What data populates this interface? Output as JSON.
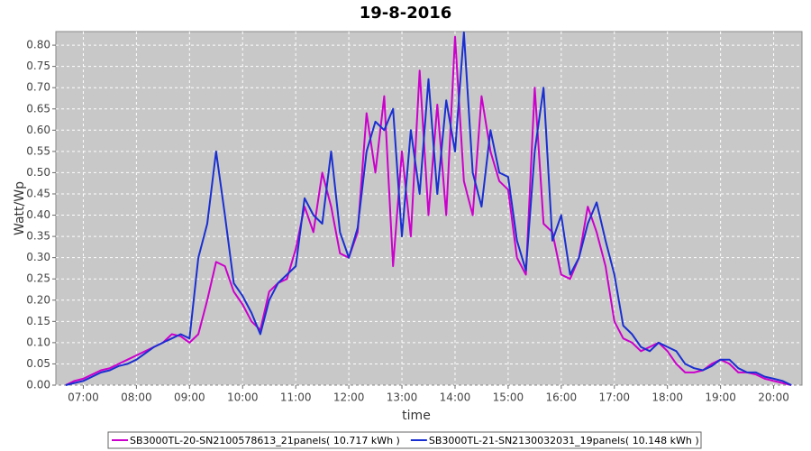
{
  "chart_data": {
    "type": "line",
    "title": "19-8-2016",
    "x_label": "time",
    "y_label": "Watt/Wp",
    "x": [
      400,
      410,
      420,
      430,
      440,
      450,
      460,
      470,
      480,
      490,
      500,
      510,
      520,
      530,
      540,
      550,
      560,
      570,
      580,
      590,
      600,
      610,
      620,
      630,
      640,
      650,
      660,
      670,
      680,
      690,
      700,
      710,
      720,
      730,
      740,
      750,
      760,
      770,
      780,
      790,
      800,
      810,
      820,
      830,
      840,
      850,
      860,
      870,
      880,
      890,
      900,
      910,
      920,
      930,
      940,
      950,
      960,
      970,
      980,
      990,
      1000,
      1010,
      1020,
      1030,
      1040,
      1050,
      1060,
      1070,
      1080,
      1090,
      1100,
      1110,
      1120,
      1130,
      1140,
      1150,
      1160,
      1170,
      1180,
      1190,
      1200,
      1210,
      1220
    ],
    "series": [
      {
        "name": "SB3000TL-20-SN2100578613_21panels( 10.717 kWh )",
        "color": "#cc00cc",
        "values": [
          0,
          0.01,
          0.015,
          0.025,
          0.035,
          0.04,
          0.05,
          0.06,
          0.07,
          0.08,
          0.09,
          0.1,
          0.12,
          0.115,
          0.1,
          0.12,
          0.2,
          0.29,
          0.28,
          0.22,
          0.19,
          0.15,
          0.13,
          0.22,
          0.24,
          0.25,
          0.32,
          0.42,
          0.36,
          0.5,
          0.42,
          0.31,
          0.3,
          0.36,
          0.64,
          0.5,
          0.68,
          0.28,
          0.55,
          0.35,
          0.74,
          0.4,
          0.66,
          0.4,
          0.82,
          0.48,
          0.4,
          0.68,
          0.55,
          0.48,
          0.46,
          0.3,
          0.26,
          0.7,
          0.38,
          0.36,
          0.26,
          0.25,
          0.3,
          0.42,
          0.36,
          0.28,
          0.15,
          0.11,
          0.1,
          0.08,
          0.09,
          0.1,
          0.08,
          0.05,
          0.03,
          0.03,
          0.035,
          0.05,
          0.06,
          0.05,
          0.03,
          0.03,
          0.025,
          0.015,
          0.01,
          0.005,
          0
        ]
      },
      {
        "name": "SB3000TL-21-SN2130032031_19panels( 10.148 kWh )",
        "color": "#1a2fd1",
        "values": [
          0,
          0.005,
          0.01,
          0.02,
          0.03,
          0.035,
          0.045,
          0.05,
          0.06,
          0.075,
          0.09,
          0.1,
          0.11,
          0.12,
          0.11,
          0.3,
          0.38,
          0.55,
          0.4,
          0.24,
          0.21,
          0.17,
          0.12,
          0.2,
          0.24,
          0.26,
          0.28,
          0.44,
          0.4,
          0.38,
          0.55,
          0.36,
          0.3,
          0.37,
          0.55,
          0.62,
          0.6,
          0.65,
          0.35,
          0.6,
          0.45,
          0.72,
          0.45,
          0.67,
          0.55,
          0.83,
          0.5,
          0.42,
          0.6,
          0.5,
          0.49,
          0.34,
          0.27,
          0.55,
          0.7,
          0.34,
          0.4,
          0.26,
          0.3,
          0.38,
          0.43,
          0.34,
          0.26,
          0.14,
          0.12,
          0.09,
          0.08,
          0.1,
          0.09,
          0.08,
          0.05,
          0.04,
          0.035,
          0.045,
          0.06,
          0.06,
          0.04,
          0.03,
          0.03,
          0.02,
          0.015,
          0.01,
          0
        ]
      }
    ],
    "xlim": [
      389,
      1232
    ],
    "ylim": [
      0,
      0.832
    ],
    "xticks": [
      {
        "value": 420,
        "label": "07:00"
      },
      {
        "value": 480,
        "label": "08:00"
      },
      {
        "value": 540,
        "label": "09:00"
      },
      {
        "value": 600,
        "label": "10:00"
      },
      {
        "value": 660,
        "label": "11:00"
      },
      {
        "value": 720,
        "label": "12:00"
      },
      {
        "value": 780,
        "label": "13:00"
      },
      {
        "value": 840,
        "label": "14:00"
      },
      {
        "value": 900,
        "label": "15:00"
      },
      {
        "value": 960,
        "label": "16:00"
      },
      {
        "value": 1020,
        "label": "17:00"
      },
      {
        "value": 1080,
        "label": "18:00"
      },
      {
        "value": 1140,
        "label": "19:00"
      },
      {
        "value": 1200,
        "label": "20:00"
      }
    ],
    "yticks": [
      {
        "value": 0,
        "label": "0.00"
      },
      {
        "value": 0.05,
        "label": "0.05"
      },
      {
        "value": 0.1,
        "label": "0.10"
      },
      {
        "value": 0.15,
        "label": "0.15"
      },
      {
        "value": 0.2,
        "label": "0.20"
      },
      {
        "value": 0.25,
        "label": "0.25"
      },
      {
        "value": 0.3,
        "label": "0.30"
      },
      {
        "value": 0.35,
        "label": "0.35"
      },
      {
        "value": 0.4,
        "label": "0.40"
      },
      {
        "value": 0.45,
        "label": "0.45"
      },
      {
        "value": 0.5,
        "label": "0.50"
      },
      {
        "value": 0.55,
        "label": "0.55"
      },
      {
        "value": 0.6,
        "label": "0.60"
      },
      {
        "value": 0.65,
        "label": "0.65"
      },
      {
        "value": 0.7,
        "label": "0.70"
      },
      {
        "value": 0.75,
        "label": "0.75"
      },
      {
        "value": 0.8,
        "label": "0.80"
      }
    ],
    "grid": true,
    "legend": "bottom"
  }
}
